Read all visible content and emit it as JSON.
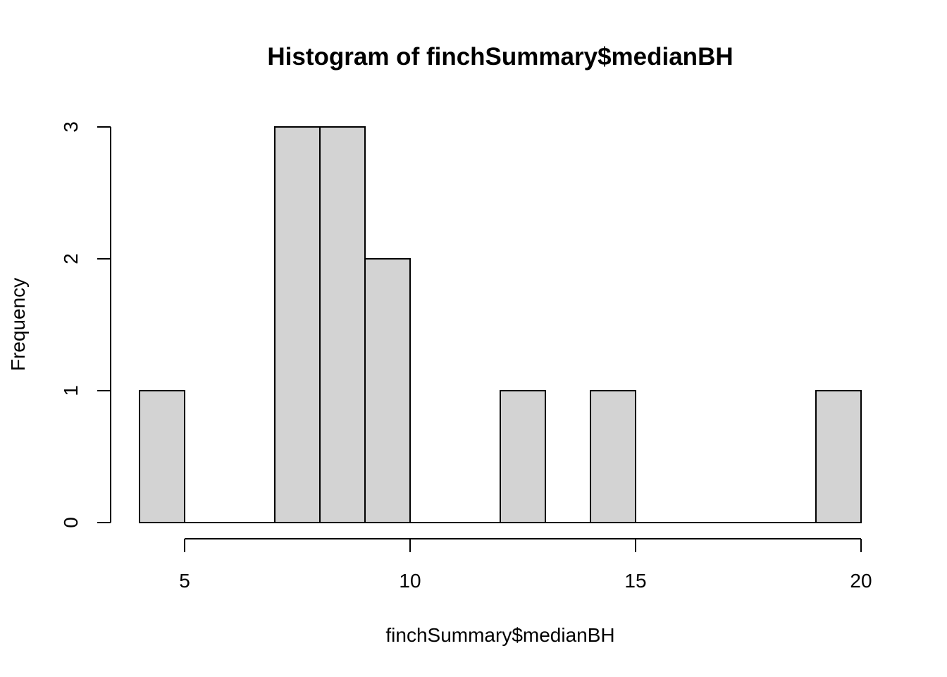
{
  "chart_data": {
    "type": "bar",
    "subtype": "histogram",
    "title": "Histogram of finchSummary$medianBH",
    "xlabel": "finchSummary$medianBH",
    "ylabel": "Frequency",
    "bin_edges": [
      4,
      5,
      6,
      7,
      8,
      9,
      10,
      11,
      12,
      13,
      14,
      15,
      16,
      17,
      18,
      19,
      20
    ],
    "counts": [
      1,
      0,
      0,
      3,
      3,
      2,
      0,
      0,
      1,
      0,
      1,
      0,
      0,
      0,
      0,
      1
    ],
    "x_ticks": [
      "5",
      "10",
      "15",
      "20"
    ],
    "y_ticks": [
      "0",
      "1",
      "2",
      "3"
    ],
    "xlim": [
      4,
      20
    ],
    "ylim": [
      0,
      3
    ],
    "bar_color": "#d3d3d3",
    "grid": false,
    "legend": "none"
  }
}
